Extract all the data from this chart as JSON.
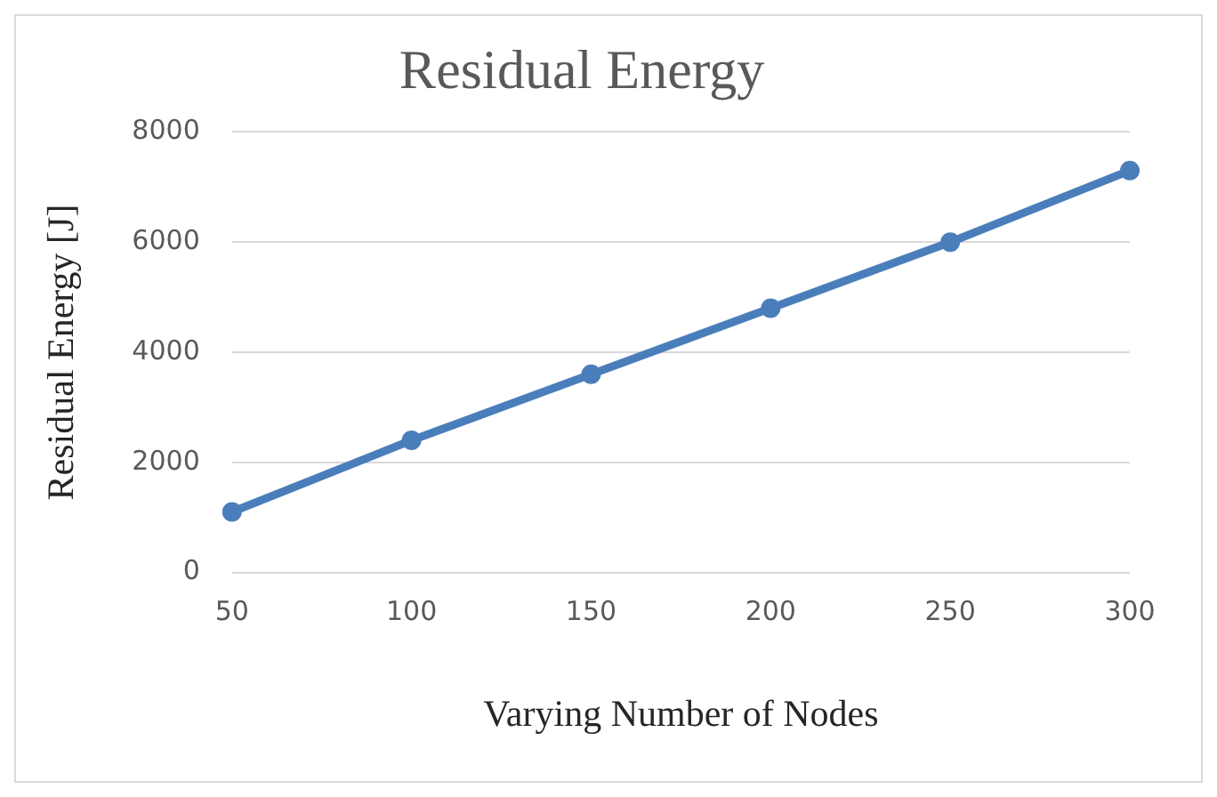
{
  "chart_data": {
    "type": "line",
    "title": "Residual Energy",
    "xlabel": "Varying Number of Nodes",
    "ylabel": "Residual Energy [J]",
    "categories": [
      "50",
      "100",
      "150",
      "200",
      "250",
      "300"
    ],
    "series": [
      {
        "color": "#4a7ebb",
        "values": [
          1100,
          2400,
          3600,
          4800,
          6000,
          7300
        ]
      }
    ],
    "ylim": [
      0,
      8000
    ],
    "yticks": [
      0,
      2000,
      4000,
      6000,
      8000
    ],
    "grid": "y",
    "legend": false,
    "marker": "circle",
    "line_style": "solid"
  }
}
